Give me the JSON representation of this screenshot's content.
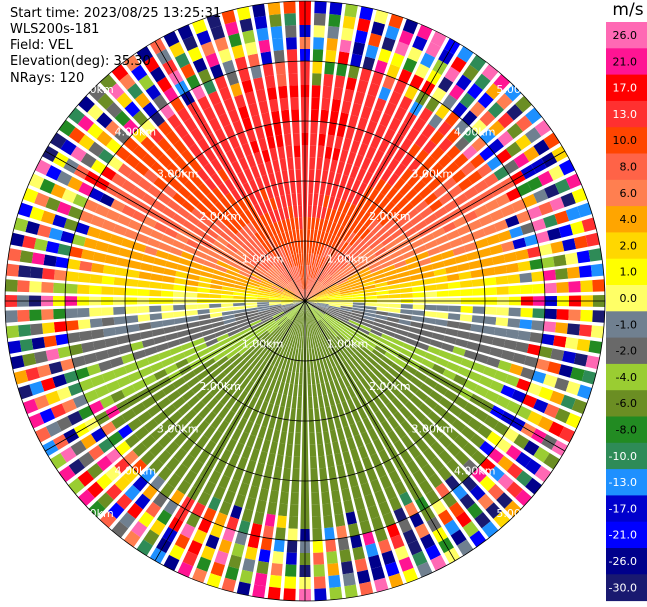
{
  "header": {
    "start_time": "Start time: 2023/08/25 13:25:31",
    "site": "WLS200s-181",
    "field": "Field: VEL",
    "elevation": "Elevation(deg): 35.30",
    "nrays": "NRays: 120"
  },
  "chart_data": {
    "type": "heatmap",
    "projection": "polar-ppi",
    "field": "VEL",
    "unit": "m/s",
    "nrays": 120,
    "elevation_deg": 35.3,
    "max_range_km": 5.0,
    "range_rings_km": [
      1.0,
      2.0,
      3.0,
      4.0,
      5.0
    ],
    "range_ring_labels": [
      "1.00km",
      "2.00km",
      "3.00km",
      "4.00km",
      "5.00km"
    ],
    "spokes_deg": [
      0,
      30,
      60,
      90,
      120,
      150,
      180,
      210,
      240,
      270,
      300,
      330
    ],
    "colorbar": {
      "ticks": [
        26.0,
        21.0,
        17.0,
        13.0,
        10.0,
        8.0,
        6.0,
        4.0,
        2.0,
        1.0,
        0.0,
        -1.0,
        -2.0,
        -4.0,
        -6.0,
        -8.0,
        -10.0,
        -13.0,
        -17.0,
        -21.0,
        -26.0,
        -30.0
      ],
      "tick_labels": [
        "26.0",
        "21.0",
        "17.0",
        "13.0",
        "10.0",
        "8.0",
        "6.0",
        "4.0",
        "2.0",
        "1.0",
        "0.0",
        "-1.0",
        "-2.0",
        "-4.0",
        "-6.0",
        "-8.0",
        "-10.0",
        "-13.0",
        "-17.0",
        "-21.0",
        "-26.0",
        "-30.0"
      ],
      "colors": [
        "#ff69b4",
        "#ff1493",
        "#ff0000",
        "#ff3030",
        "#ff4500",
        "#ff6347",
        "#ff7f50",
        "#ffa500",
        "#ffd700",
        "#ffff00",
        "#ffff66",
        "#708090",
        "#696969",
        "#9acd32",
        "#6b8e23",
        "#228b22",
        "#2e8b57",
        "#1e90ff",
        "#0000cd",
        "#0000ff",
        "#00008b",
        "#191970"
      ]
    },
    "velocity_pattern": {
      "approach_max_mps": 13.0,
      "recede_max_mps": -8.0,
      "zero_line_azimuth_deg": [
        85,
        265
      ],
      "noise_start_km": 3.7
    }
  }
}
